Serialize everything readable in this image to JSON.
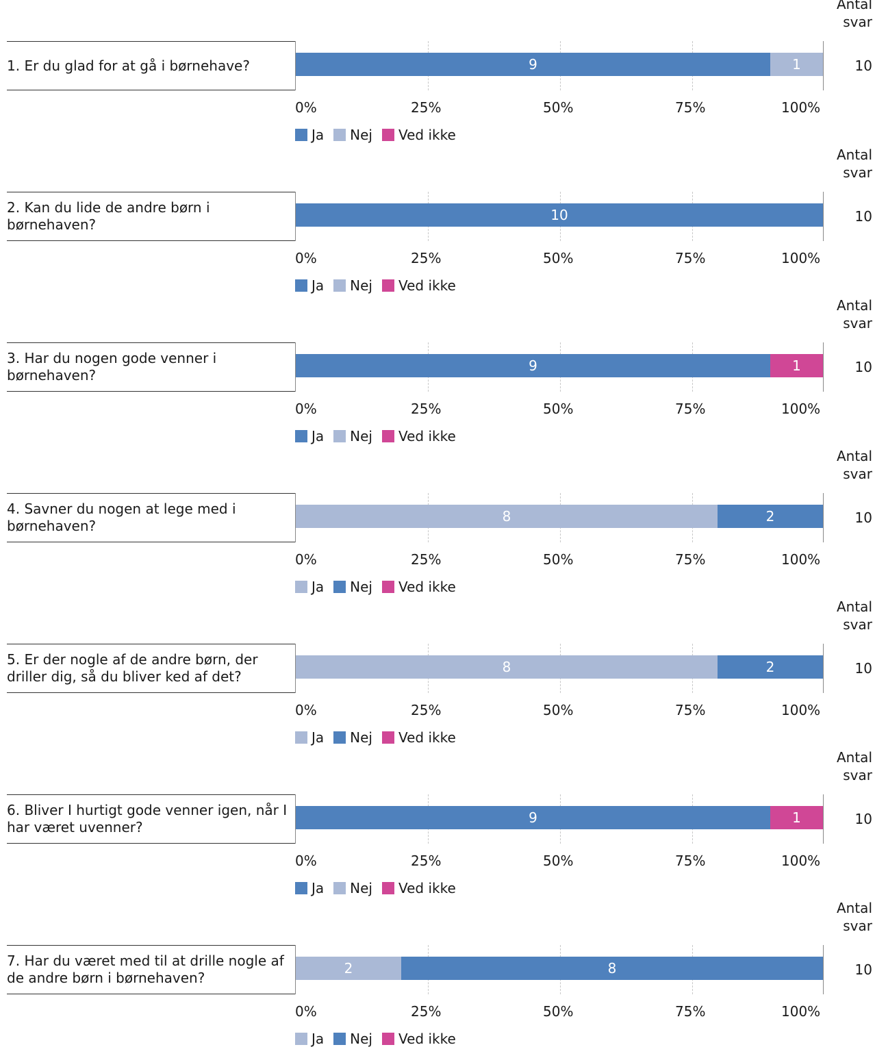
{
  "colors": {
    "dark_blue": "#4f81bd",
    "light_blue": "#aab9d6",
    "pink": "#d04796"
  },
  "antal_label": "Antal svar",
  "x_ticks": [
    "0%",
    "25%",
    "50%",
    "75%",
    "100%"
  ],
  "chart_data": [
    {
      "type": "bar",
      "stacked": true,
      "orientation": "horizontal",
      "question": "1. Er du glad for at gå i børnehave?",
      "total": 10,
      "legend": [
        {
          "name": "Ja",
          "color": "#4f81bd"
        },
        {
          "name": "Nej",
          "color": "#aab9d6"
        },
        {
          "name": "Ved ikke",
          "color": "#d04796"
        }
      ],
      "segments": [
        {
          "series": "Ja",
          "value": 9,
          "color": "#4f81bd"
        },
        {
          "series": "Nej",
          "value": 1,
          "color": "#aab9d6"
        }
      ]
    },
    {
      "type": "bar",
      "stacked": true,
      "orientation": "horizontal",
      "question": "2. Kan du lide de andre børn i børnehaven?",
      "total": 10,
      "legend": [
        {
          "name": "Ja",
          "color": "#4f81bd"
        },
        {
          "name": "Nej",
          "color": "#aab9d6"
        },
        {
          "name": "Ved ikke",
          "color": "#d04796"
        }
      ],
      "segments": [
        {
          "series": "Ja",
          "value": 10,
          "color": "#4f81bd"
        }
      ]
    },
    {
      "type": "bar",
      "stacked": true,
      "orientation": "horizontal",
      "question": "3. Har du nogen gode venner i børnehaven?",
      "total": 10,
      "legend": [
        {
          "name": "Ja",
          "color": "#4f81bd"
        },
        {
          "name": "Nej",
          "color": "#aab9d6"
        },
        {
          "name": "Ved ikke",
          "color": "#d04796"
        }
      ],
      "segments": [
        {
          "series": "Ja",
          "value": 9,
          "color": "#4f81bd"
        },
        {
          "series": "Ved ikke",
          "value": 1,
          "color": "#d04796"
        }
      ]
    },
    {
      "type": "bar",
      "stacked": true,
      "orientation": "horizontal",
      "question": "4. Savner du nogen at lege med i børnehaven?",
      "total": 10,
      "legend": [
        {
          "name": "Ja",
          "color": "#aab9d6"
        },
        {
          "name": "Nej",
          "color": "#4f81bd"
        },
        {
          "name": "Ved ikke",
          "color": "#d04796"
        }
      ],
      "segments": [
        {
          "series": "Ja",
          "value": 8,
          "color": "#aab9d6"
        },
        {
          "series": "Nej",
          "value": 2,
          "color": "#4f81bd"
        }
      ]
    },
    {
      "type": "bar",
      "stacked": true,
      "orientation": "horizontal",
      "question": "5. Er der nogle af de andre børn, der driller dig, så du bliver ked af det?",
      "total": 10,
      "legend": [
        {
          "name": "Ja",
          "color": "#aab9d6"
        },
        {
          "name": "Nej",
          "color": "#4f81bd"
        },
        {
          "name": "Ved ikke",
          "color": "#d04796"
        }
      ],
      "segments": [
        {
          "series": "Ja",
          "value": 8,
          "color": "#aab9d6"
        },
        {
          "series": "Nej",
          "value": 2,
          "color": "#4f81bd"
        }
      ]
    },
    {
      "type": "bar",
      "stacked": true,
      "orientation": "horizontal",
      "question": "6. Bliver I hurtigt gode venner igen, når I har været uvenner?",
      "total": 10,
      "legend": [
        {
          "name": "Ja",
          "color": "#4f81bd"
        },
        {
          "name": "Nej",
          "color": "#aab9d6"
        },
        {
          "name": "Ved ikke",
          "color": "#d04796"
        }
      ],
      "segments": [
        {
          "series": "Ja",
          "value": 9,
          "color": "#4f81bd"
        },
        {
          "series": "Ved ikke",
          "value": 1,
          "color": "#d04796"
        }
      ]
    },
    {
      "type": "bar",
      "stacked": true,
      "orientation": "horizontal",
      "question": "7. Har du været med til at drille nogle af de andre børn i børnehaven?",
      "total": 10,
      "legend": [
        {
          "name": "Ja",
          "color": "#aab9d6"
        },
        {
          "name": "Nej",
          "color": "#4f81bd"
        },
        {
          "name": "Ved ikke",
          "color": "#d04796"
        }
      ],
      "segments": [
        {
          "series": "Ja",
          "value": 2,
          "color": "#aab9d6"
        },
        {
          "series": "Nej",
          "value": 8,
          "color": "#4f81bd"
        }
      ]
    }
  ]
}
